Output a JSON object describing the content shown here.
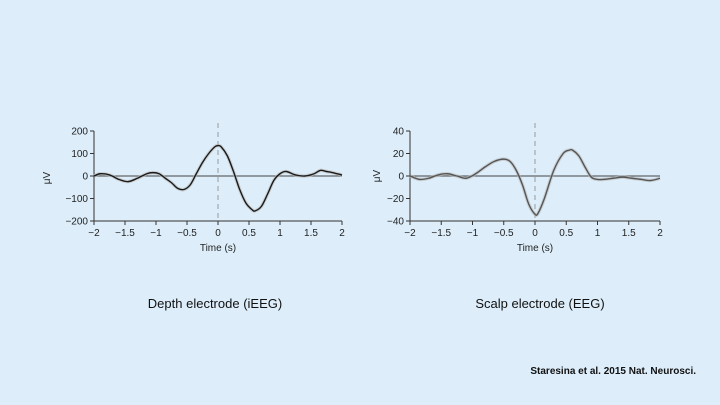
{
  "chart_data": [
    {
      "type": "line",
      "xlabel": "Time (s)",
      "ylabel": "μV",
      "xlim": [
        -2,
        2
      ],
      "ylim": [
        -200,
        200
      ],
      "xticks": [
        -2,
        -1.5,
        -1,
        -0.5,
        0,
        0.5,
        1,
        1.5,
        2
      ],
      "xtick_labels": [
        "−2",
        "−1.5",
        "−1",
        "−0.5",
        "0",
        "0.5",
        "1",
        "1.5",
        "2"
      ],
      "yticks": [
        -200,
        -100,
        0,
        100,
        200
      ],
      "ytick_labels": [
        "−200",
        "−100",
        "0",
        "100",
        "200"
      ],
      "zero_line": true,
      "onset_marker_x": 0,
      "series": [
        {
          "color": "#1a1a1a",
          "x": [
            -2,
            -1.9,
            -1.75,
            -1.6,
            -1.45,
            -1.3,
            -1.15,
            -1.05,
            -0.95,
            -0.85,
            -0.75,
            -0.65,
            -0.55,
            -0.45,
            -0.35,
            -0.25,
            -0.15,
            -0.05,
            0,
            0.05,
            0.15,
            0.25,
            0.35,
            0.45,
            0.55,
            0.6,
            0.7,
            0.8,
            0.9,
            1.0,
            1.1,
            1.25,
            1.4,
            1.55,
            1.65,
            1.75,
            1.85,
            2.0
          ],
          "y": [
            0,
            10,
            5,
            -15,
            -25,
            -10,
            10,
            15,
            10,
            -10,
            -30,
            -55,
            -60,
            -40,
            10,
            60,
            100,
            130,
            135,
            130,
            90,
            20,
            -60,
            -120,
            -150,
            -155,
            -135,
            -80,
            -20,
            10,
            20,
            5,
            0,
            10,
            25,
            20,
            15,
            5
          ]
        }
      ]
    },
    {
      "type": "line",
      "xlabel": "Time (s)",
      "ylabel": "μV",
      "xlim": [
        -2,
        2
      ],
      "ylim": [
        -40,
        40
      ],
      "xticks": [
        -2,
        -1.5,
        -1,
        -0.5,
        0,
        0.5,
        1,
        1.5,
        2
      ],
      "xtick_labels": [
        "−2",
        "−1.5",
        "−1",
        "−0.5",
        "0",
        "0.5",
        "1",
        "1.5",
        "2"
      ],
      "yticks": [
        -40,
        -20,
        0,
        20,
        40
      ],
      "ytick_labels": [
        "−40",
        "−20",
        "0",
        "20",
        "40"
      ],
      "zero_line": true,
      "onset_marker_x": 0,
      "series": [
        {
          "color": "#555555",
          "x": [
            -2,
            -1.85,
            -1.7,
            -1.55,
            -1.4,
            -1.25,
            -1.1,
            -0.95,
            -0.8,
            -0.65,
            -0.5,
            -0.4,
            -0.3,
            -0.2,
            -0.1,
            0,
            0.05,
            0.15,
            0.3,
            0.45,
            0.55,
            0.6,
            0.7,
            0.8,
            0.9,
            1.0,
            1.1,
            1.25,
            1.4,
            1.55,
            1.7,
            1.85,
            2.0
          ],
          "y": [
            0,
            -3,
            -2,
            1,
            2,
            0,
            -2,
            2,
            8,
            13,
            15,
            13,
            5,
            -8,
            -25,
            -34,
            -33,
            -20,
            5,
            20,
            23,
            23,
            18,
            8,
            -1,
            -3,
            -3,
            -2,
            -1,
            -2,
            -3,
            -4,
            -2
          ]
        }
      ]
    }
  ],
  "captions": {
    "left": "Depth electrode (iEEG)",
    "right": "Scalp electrode (EEG)"
  },
  "citation": "Staresina et al. 2015 Nat. Neurosci."
}
